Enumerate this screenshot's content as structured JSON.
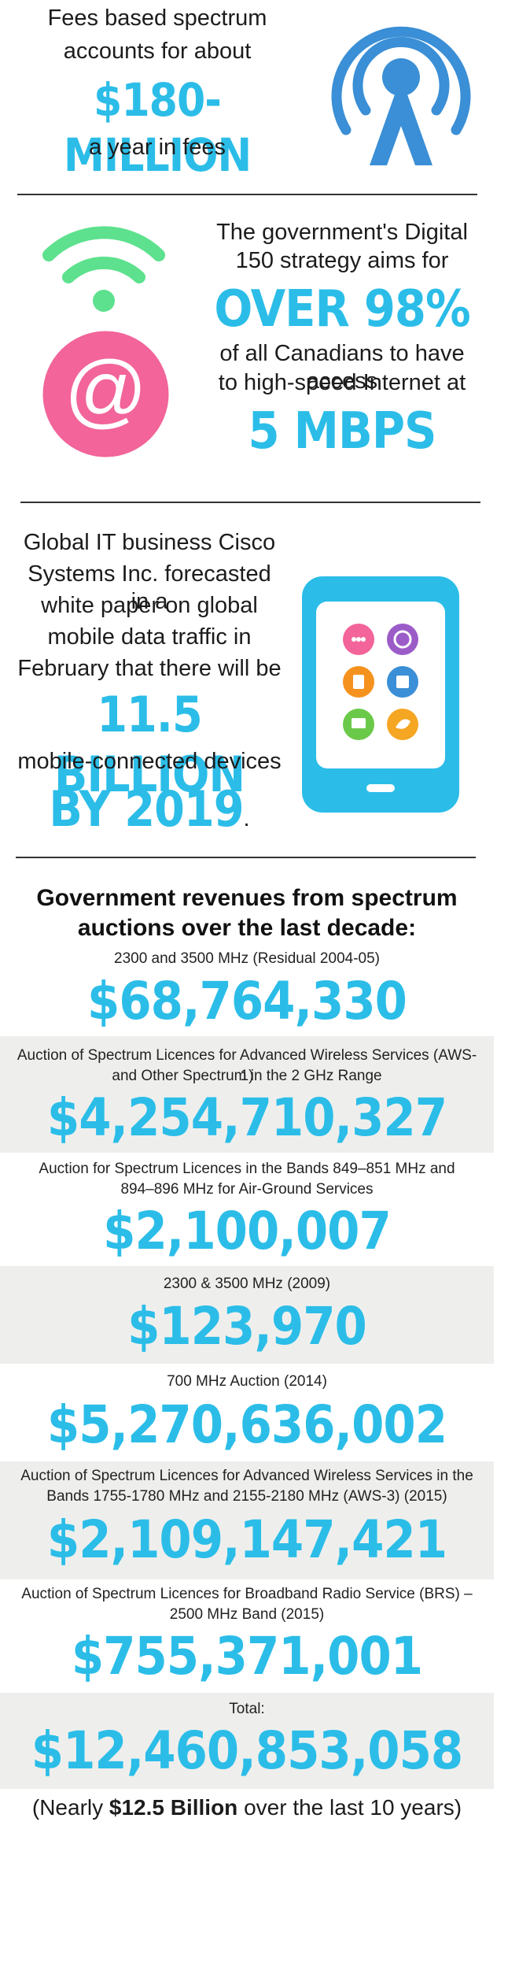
{
  "section1": {
    "line1": "Fees based spectrum",
    "line2": "accounts for about",
    "amount": "$180-MILLION",
    "line3": "a year in fees",
    "icon": "radio-tower-icon"
  },
  "section2": {
    "line1": "The government's Digital",
    "line2": "150 strategy aims for",
    "highlight": "OVER 98%",
    "line3": "of all Canadians to have access",
    "line4": "to high-speed Internet at",
    "speed": "5 MBPS",
    "icons": [
      "wifi-icon",
      "at-sign-icon"
    ]
  },
  "section3": {
    "line1": "Global IT business Cisco",
    "line2": "Systems Inc. forecasted in a",
    "line3": "white paper on global",
    "line4": "mobile data traffic in",
    "line5": "February that there will be",
    "highlight": "11.5 BILLION",
    "line6": "mobile-connected devices",
    "year": "BY 2019",
    "period": ".",
    "icon": "smartphone-apps-icon"
  },
  "auctions": {
    "title_line1": "Government revenues from spectrum",
    "title_line2": "auctions over the last decade:",
    "items": [
      {
        "label": "2300 and 3500 MHz (Residual 2004-05)",
        "label2": "",
        "amount": "$68,764,330"
      },
      {
        "label": "Auction of Spectrum Licences for Advanced Wireless Services (AWS-1)",
        "label2": "and Other Spectrum in the 2 GHz Range",
        "amount": "$4,254,710,327"
      },
      {
        "label": "Auction for Spectrum Licences in the Bands 849–851 MHz and",
        "label2": "894–896 MHz for Air-Ground Services",
        "amount": "$2,100,007"
      },
      {
        "label": "2300 & 3500 MHz (2009)",
        "label2": "",
        "amount": "$123,970"
      },
      {
        "label": "700 MHz Auction (2014)",
        "label2": "",
        "amount": "$5,270,636,002"
      },
      {
        "label": "Auction of Spectrum Licences for Advanced Wireless Services in the",
        "label2": "Bands 1755-1780 MHz and 2155-2180 MHz (AWS-3) (2015)",
        "amount": "$2,109,147,421"
      },
      {
        "label": "Auction of Spectrum Licences for Broadband Radio Service (BRS) –",
        "label2": "2500 MHz Band (2015)",
        "amount": "$755,371,001"
      }
    ],
    "total_label": "Total:",
    "total_amount": "$12,460,853,058",
    "footer_open": "(Nearly ",
    "footer_bold": "$12.5 Billion",
    "footer_close": " over the last 10 years)"
  },
  "colors": {
    "accent": "#2bbde8",
    "tower": "#3a8fd6",
    "wifi": "#5de18e",
    "at_circle": "#f2649a",
    "band": "#eeefed"
  }
}
